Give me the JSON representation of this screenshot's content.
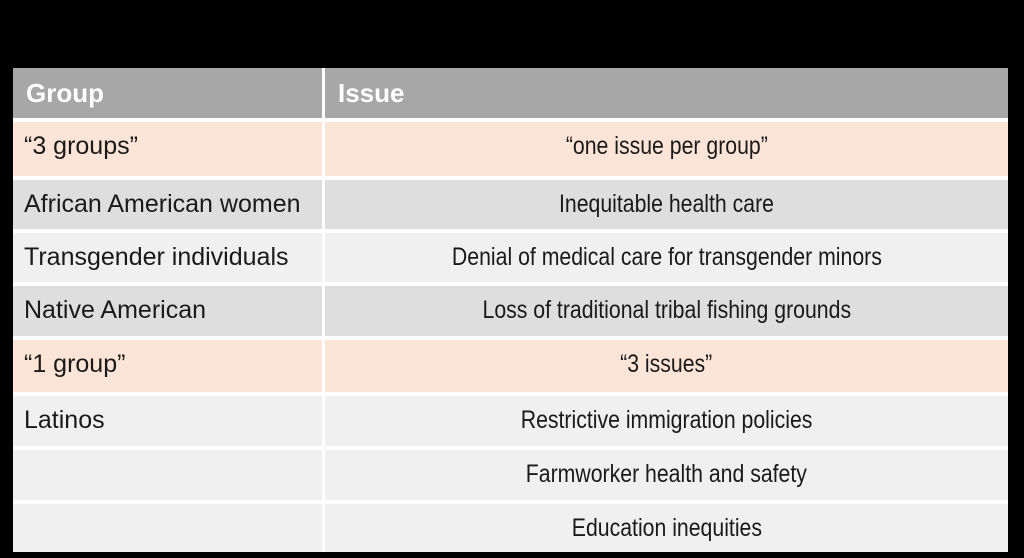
{
  "colors": {
    "background": "#000000",
    "header_bg": "#a7a7a7",
    "header_text": "#ffffff",
    "band_dark": "#dedede",
    "band_light": "#f0f0f0",
    "highlight_peach": "#fce4d6",
    "gridline": "#ffffff",
    "cell_text": "#1a1a1a"
  },
  "table": {
    "columns": [
      {
        "label": "Group"
      },
      {
        "label": "Issue"
      }
    ],
    "rows": [
      {
        "group": "“3 groups”",
        "issue": "“one issue per group”",
        "band": "peach"
      },
      {
        "group": "African American women",
        "issue": "Inequitable health care",
        "band": "dark"
      },
      {
        "group": "Transgender individuals",
        "issue": "Denial of medical care for transgender minors",
        "band": "light"
      },
      {
        "group": "Native American",
        "issue": "Loss of traditional tribal fishing grounds",
        "band": "dark"
      },
      {
        "group": "“1 group”",
        "issue": "“3 issues”",
        "band": "peach"
      },
      {
        "group": "Latinos",
        "issue": "Restrictive immigration policies",
        "band": "light"
      },
      {
        "group": "",
        "issue": "Farmworker health and safety",
        "band": "light"
      },
      {
        "group": "",
        "issue": "Education inequities",
        "band": "light"
      }
    ]
  }
}
